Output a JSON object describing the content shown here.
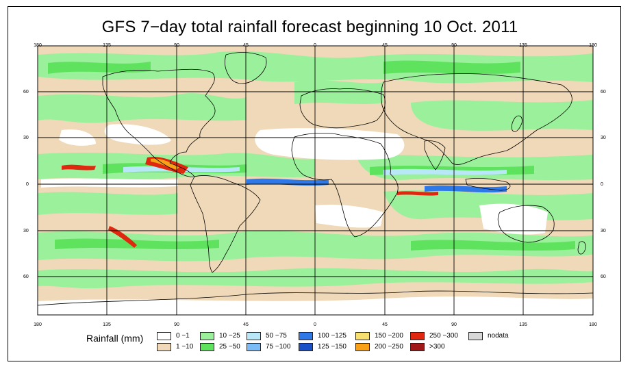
{
  "title": "GFS 7−day total rainfall forecast beginning 10 Oct. 2011",
  "axes": {
    "lon_labels": [
      "180",
      "135",
      "90",
      "45",
      "0",
      "45",
      "90",
      "135",
      "180"
    ],
    "lat_labels_left": [
      "60",
      "30",
      "0",
      "30",
      "60"
    ],
    "lat_labels_right": [
      "60",
      "30",
      "0",
      "30",
      "60"
    ]
  },
  "legend": {
    "title": "Rainfall (mm)",
    "items": [
      {
        "label": "0 −1",
        "color": "#ffffff"
      },
      {
        "label": "1 −10",
        "color": "#efd9b8"
      },
      {
        "label": "10 −25",
        "color": "#9bf09b"
      },
      {
        "label": "25 −50",
        "color": "#5fe35f"
      },
      {
        "label": "50 −75",
        "color": "#b8e8f8"
      },
      {
        "label": "75 −100",
        "color": "#7cbcf6"
      },
      {
        "label": "100 −125",
        "color": "#2e78e8"
      },
      {
        "label": "125 −150",
        "color": "#1a50c8"
      },
      {
        "label": "150 −200",
        "color": "#f8e070"
      },
      {
        "label": "200 −250",
        "color": "#f8a018"
      },
      {
        "label": "250 −300",
        "color": "#e02810"
      },
      {
        "label": ">300",
        "color": "#a01818"
      },
      {
        "label": "nodata",
        "color": "#d8d8d8"
      }
    ]
  },
  "colors": {
    "background": "#ffffff",
    "border": "#000000",
    "land_outline": "#000000",
    "grid": "#000000"
  }
}
